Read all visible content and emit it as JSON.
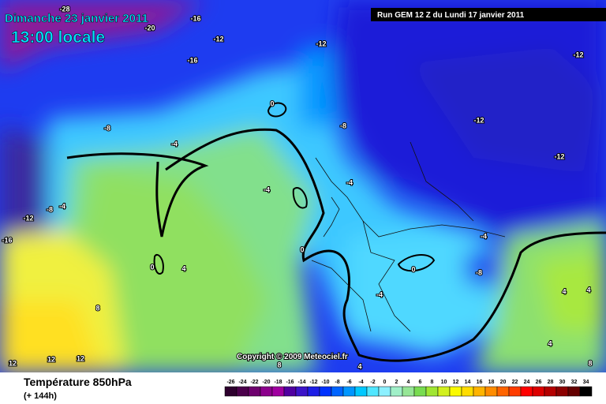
{
  "header": {
    "date": "Dimanche 23 janvier 2011",
    "time": "13:00 locale",
    "run": "Run GEM 12 Z du Lundi 17 janvier 2011"
  },
  "copyright": "Copyright © 2009 Meteociel.fr",
  "footer": {
    "title": "Température 850hPa",
    "lead": "(+ 144h)"
  },
  "legend": {
    "labels": [
      "-26",
      "-24",
      "-22",
      "-20",
      "-18",
      "-16",
      "-14",
      "-12",
      "-10",
      "-8",
      "-6",
      "-4",
      "-2",
      "0",
      "2",
      "4",
      "6",
      "8",
      "10",
      "12",
      "14",
      "16",
      "18",
      "20",
      "22",
      "24",
      "26",
      "28",
      "30",
      "32",
      "34"
    ],
    "colors": [
      "#2d002d",
      "#4b004b",
      "#6e006e",
      "#8c008c",
      "#a000a0",
      "#5000a0",
      "#3c14c8",
      "#1e1ee6",
      "#0032ff",
      "#0064ff",
      "#0096ff",
      "#00c8ff",
      "#50e6ff",
      "#8cf0ff",
      "#a0f0c8",
      "#96e696",
      "#78dc50",
      "#a0e632",
      "#d2f01e",
      "#fafa00",
      "#ffdc00",
      "#ffb400",
      "#ff8c00",
      "#ff6400",
      "#ff3c00",
      "#ff0000",
      "#dc0000",
      "#b40000",
      "#8c0000",
      "#640000",
      "#000000"
    ]
  },
  "contour_labels": [
    "-28",
    "-20",
    "-16",
    "-12",
    "-16",
    "-12",
    "-12",
    "-8",
    "-4",
    "0",
    "-8",
    "-12",
    "-12",
    "-4",
    "-12",
    "-8",
    "-4",
    "-16",
    "-4",
    "0",
    "0",
    "4",
    "-4",
    "0",
    "-8",
    "-4",
    "8",
    "4",
    "4",
    "12",
    "12",
    "12",
    "8",
    "4",
    "4",
    "8"
  ]
}
